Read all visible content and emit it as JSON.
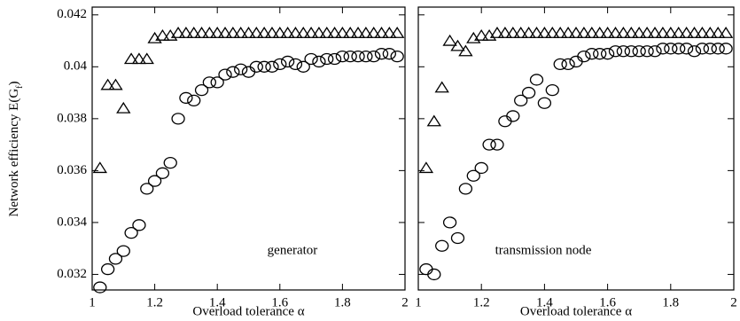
{
  "ylabel": {
    "text": "Network efficiency E(G",
    "sub": "f",
    "end": ")"
  },
  "chart_data": [
    {
      "type": "scatter",
      "annotation": "generator",
      "xlabel": "Overload tolerance α",
      "xlim": [
        1,
        2
      ],
      "ylim": [
        0.0314,
        0.0423
      ],
      "xticks": [
        1,
        1.2,
        1.4,
        1.6,
        1.8,
        2
      ],
      "yticks": [
        0.032,
        0.034,
        0.036,
        0.038,
        0.04,
        0.042
      ],
      "show_ytick_labels": true,
      "x": [
        1.025,
        1.05,
        1.075,
        1.1,
        1.125,
        1.15,
        1.175,
        1.2,
        1.225,
        1.25,
        1.275,
        1.3,
        1.325,
        1.35,
        1.375,
        1.4,
        1.425,
        1.45,
        1.475,
        1.5,
        1.525,
        1.55,
        1.575,
        1.6,
        1.625,
        1.65,
        1.675,
        1.7,
        1.725,
        1.75,
        1.775,
        1.8,
        1.825,
        1.85,
        1.875,
        1.9,
        1.925,
        1.95,
        1.975
      ],
      "series": [
        {
          "marker": "triangle",
          "color": "#000000",
          "values": [
            0.0361,
            0.0393,
            0.0393,
            0.0384,
            0.0403,
            0.0403,
            0.0403,
            0.0411,
            0.0412,
            0.0412,
            0.0413,
            0.0413,
            0.0413,
            0.0413,
            0.0413,
            0.0413,
            0.0413,
            0.0413,
            0.0413,
            0.0413,
            0.0413,
            0.0413,
            0.0413,
            0.0413,
            0.0413,
            0.0413,
            0.0413,
            0.0413,
            0.0413,
            0.0413,
            0.0413,
            0.0413,
            0.0413,
            0.0413,
            0.0413,
            0.0413,
            0.0413,
            0.0413,
            0.0413
          ]
        },
        {
          "marker": "circle",
          "color": "#000000",
          "values": [
            0.0315,
            0.0322,
            0.0326,
            0.0329,
            0.0336,
            0.0339,
            0.0353,
            0.0356,
            0.0359,
            0.0363,
            0.038,
            0.0388,
            0.0387,
            0.0391,
            0.0394,
            0.0394,
            0.0397,
            0.0398,
            0.0399,
            0.0398,
            0.04,
            0.04,
            0.04,
            0.0401,
            0.0402,
            0.0401,
            0.04,
            0.0403,
            0.0402,
            0.0403,
            0.0403,
            0.0404,
            0.0404,
            0.0404,
            0.0404,
            0.0404,
            0.0405,
            0.0405,
            0.0404
          ]
        }
      ]
    },
    {
      "type": "scatter",
      "annotation": "transmission node",
      "xlabel": "Overload tolerance α",
      "xlim": [
        1,
        2
      ],
      "ylim": [
        0.0314,
        0.0423
      ],
      "xticks": [
        1,
        1.2,
        1.4,
        1.6,
        1.8,
        2
      ],
      "yticks": [
        0.032,
        0.034,
        0.036,
        0.038,
        0.04,
        0.042
      ],
      "show_ytick_labels": false,
      "x": [
        1.025,
        1.05,
        1.075,
        1.1,
        1.125,
        1.15,
        1.175,
        1.2,
        1.225,
        1.25,
        1.275,
        1.3,
        1.325,
        1.35,
        1.375,
        1.4,
        1.425,
        1.45,
        1.475,
        1.5,
        1.525,
        1.55,
        1.575,
        1.6,
        1.625,
        1.65,
        1.675,
        1.7,
        1.725,
        1.75,
        1.775,
        1.8,
        1.825,
        1.85,
        1.875,
        1.9,
        1.925,
        1.95,
        1.975
      ],
      "series": [
        {
          "marker": "triangle",
          "color": "#000000",
          "values": [
            0.0361,
            0.0379,
            0.0392,
            0.041,
            0.0408,
            0.0406,
            0.0411,
            0.0412,
            0.0412,
            0.0413,
            0.0413,
            0.0413,
            0.0413,
            0.0413,
            0.0413,
            0.0413,
            0.0413,
            0.0413,
            0.0413,
            0.0413,
            0.0413,
            0.0413,
            0.0413,
            0.0413,
            0.0413,
            0.0413,
            0.0413,
            0.0413,
            0.0413,
            0.0413,
            0.0413,
            0.0413,
            0.0413,
            0.0413,
            0.0413,
            0.0413,
            0.0413,
            0.0413,
            0.0413
          ]
        },
        {
          "marker": "circle",
          "color": "#000000",
          "values": [
            0.0322,
            0.032,
            0.0331,
            0.034,
            0.0334,
            0.0353,
            0.0358,
            0.0361,
            0.037,
            0.037,
            0.0379,
            0.0381,
            0.0387,
            0.039,
            0.0395,
            0.0386,
            0.0391,
            0.0401,
            0.0401,
            0.0402,
            0.0404,
            0.0405,
            0.0405,
            0.0405,
            0.0406,
            0.0406,
            0.0406,
            0.0406,
            0.0406,
            0.0406,
            0.0407,
            0.0407,
            0.0407,
            0.0407,
            0.0406,
            0.0407,
            0.0407,
            0.0407,
            0.0407
          ]
        }
      ]
    }
  ]
}
